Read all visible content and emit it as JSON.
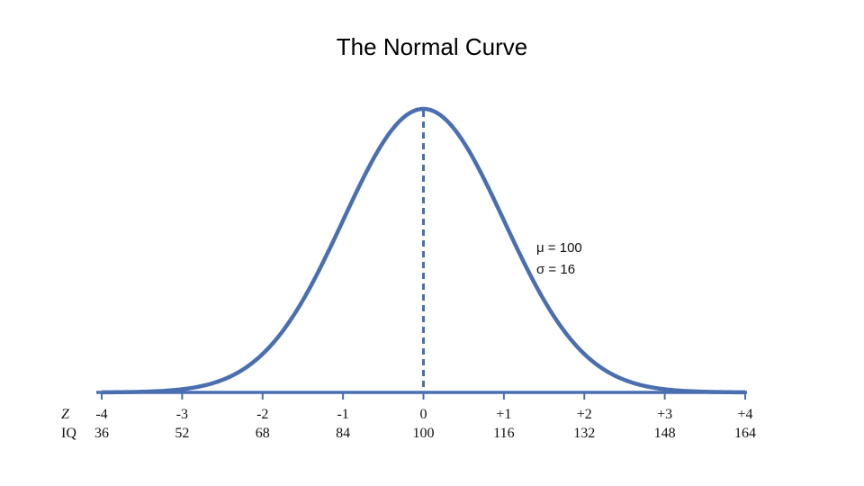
{
  "title": "The Normal Curve",
  "chart_data": {
    "type": "line",
    "title": "The Normal Curve",
    "distribution": "normal",
    "mean": 100,
    "sd": 16,
    "x": [
      36,
      44,
      52,
      60,
      68,
      76,
      84,
      88,
      92,
      96,
      100,
      104,
      108,
      112,
      116,
      124,
      132,
      140,
      148,
      156,
      164
    ],
    "y": [
      0.00013,
      0.00109,
      0.00699,
      0.03394,
      0.12519,
      0.35083,
      0.74645,
      0.96297,
      1.20733,
      1.45878,
      1.55691,
      1.45878,
      1.20733,
      0.96297,
      0.74645,
      0.35083,
      0.12519,
      0.03394,
      0.00699,
      0.00109,
      0.00013
    ],
    "y_scale": "relative density (peak at mean)",
    "xlim": [
      36,
      164
    ],
    "grid": false,
    "legend": "none",
    "mean_line": {
      "at": 100,
      "style": "dashed"
    },
    "axis_rows": [
      {
        "label": "Z",
        "ticks": [
          "-4",
          "-3",
          "-2",
          "-1",
          "0",
          "+1",
          "+2",
          "+3",
          "+4"
        ]
      },
      {
        "label": "IQ",
        "ticks": [
          "36",
          "52",
          "68",
          "84",
          "100",
          "116",
          "132",
          "148",
          "164"
        ]
      }
    ],
    "annotations": [
      "μ = 100",
      "σ = 16"
    ],
    "curve_color": "#4a6fb0"
  }
}
